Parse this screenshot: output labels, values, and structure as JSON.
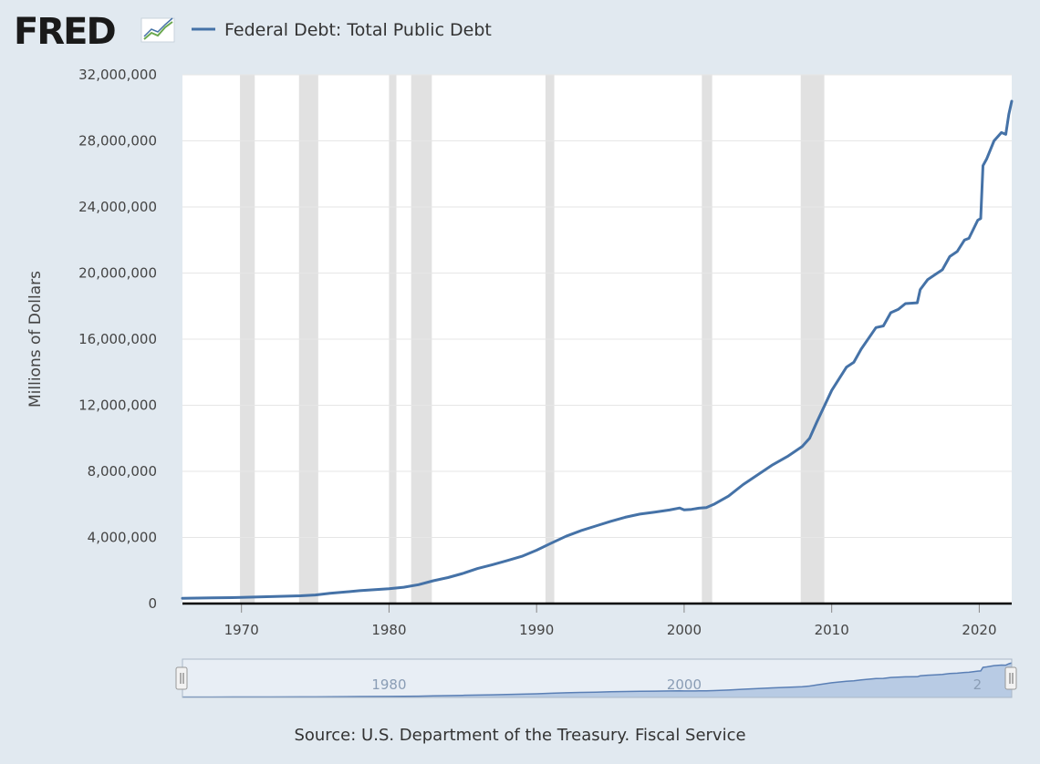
{
  "branding": {
    "logo_text": "FRED"
  },
  "legend": {
    "label": "Federal Debt: Total Public Debt"
  },
  "source": {
    "text": "Source: U.S. Department of the Treasury. Fiscal Service"
  },
  "colors": {
    "series": "#4572a7",
    "recession": "#e1e1e1",
    "plot_bg": "#ffffff",
    "page_bg": "#e1e9f0",
    "navigator_fill": "#b8cbe4",
    "navigator_line": "#5a7fb5"
  },
  "navigator": {
    "labels": [
      "1980",
      "2000",
      "2"
    ]
  },
  "chart_data": {
    "type": "line",
    "title": "",
    "xlabel": "",
    "ylabel": "Millions of Dollars",
    "xlim": [
      1966.0,
      2022.2
    ],
    "ylim": [
      0,
      32000000
    ],
    "yticks": [
      0,
      4000000,
      8000000,
      12000000,
      16000000,
      20000000,
      24000000,
      28000000,
      32000000
    ],
    "ytick_labels": [
      "0",
      "4,000,000",
      "8,000,000",
      "12,000,000",
      "16,000,000",
      "20,000,000",
      "24,000,000",
      "28,000,000",
      "32,000,000"
    ],
    "xticks": [
      1970,
      1980,
      1990,
      2000,
      2010,
      2020
    ],
    "xtick_labels": [
      "1970",
      "1980",
      "1990",
      "2000",
      "2010",
      "2020"
    ],
    "grid": "horizontal",
    "recessions": [
      [
        1969.9,
        1970.9
      ],
      [
        1973.9,
        1975.2
      ],
      [
        1980.0,
        1980.5
      ],
      [
        1981.5,
        1982.9
      ],
      [
        1990.6,
        1991.2
      ],
      [
        2001.2,
        2001.9
      ],
      [
        2007.9,
        2009.5
      ]
    ],
    "series": [
      {
        "name": "Federal Debt: Total Public Debt",
        "x": [
          1966.0,
          1968.0,
          1970.0,
          1972.0,
          1974.0,
          1975.0,
          1976.0,
          1978.0,
          1980.0,
          1981.0,
          1982.0,
          1983.0,
          1984.0,
          1985.0,
          1986.0,
          1987.0,
          1988.0,
          1989.0,
          1990.0,
          1991.0,
          1992.0,
          1993.0,
          1994.0,
          1995.0,
          1996.0,
          1997.0,
          1998.0,
          1999.0,
          1999.7,
          2000.0,
          2000.5,
          2001.0,
          2001.5,
          2002.0,
          2003.0,
          2004.0,
          2005.0,
          2006.0,
          2007.0,
          2008.0,
          2008.5,
          2009.0,
          2010.0,
          2011.0,
          2011.5,
          2012.0,
          2013.0,
          2013.5,
          2014.0,
          2014.5,
          2015.0,
          2015.8,
          2016.0,
          2016.5,
          2017.0,
          2017.5,
          2018.0,
          2018.5,
          2019.0,
          2019.3,
          2019.9,
          2020.1,
          2020.25,
          2020.5,
          2021.0,
          2021.5,
          2021.8,
          2022.0,
          2022.2
        ],
        "values": [
          320000,
          340000,
          370000,
          420000,
          470000,
          520000,
          620000,
          780000,
          900000,
          990000,
          1140000,
          1380000,
          1570000,
          1820000,
          2120000,
          2350000,
          2600000,
          2860000,
          3230000,
          3660000,
          4070000,
          4410000,
          4690000,
          4970000,
          5220000,
          5410000,
          5530000,
          5660000,
          5780000,
          5670000,
          5700000,
          5770000,
          5810000,
          6000000,
          6500000,
          7200000,
          7800000,
          8400000,
          8900000,
          9500000,
          10000000,
          11000000,
          12900000,
          14300000,
          14600000,
          15400000,
          16700000,
          16800000,
          17600000,
          17800000,
          18150000,
          18200000,
          19000000,
          19600000,
          19900000,
          20200000,
          21000000,
          21300000,
          22000000,
          22100000,
          23200000,
          23300000,
          26500000,
          26900000,
          28000000,
          28500000,
          28400000,
          29600000,
          30400000
        ]
      }
    ]
  }
}
